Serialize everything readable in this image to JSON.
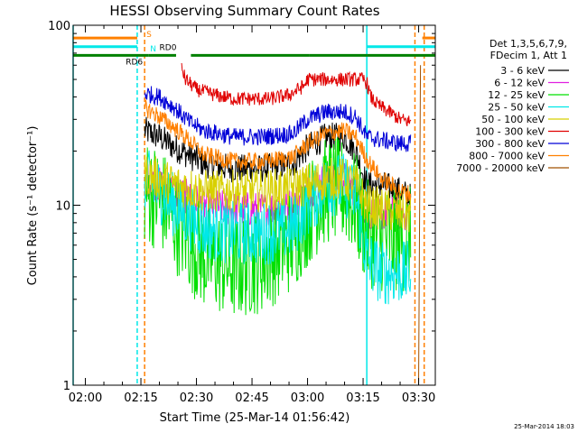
{
  "chart_data": {
    "type": "line",
    "title": "HESSI Observing Summary Count Rates",
    "xlabel": "Start Time (25-Mar-14 01:56:42)",
    "ylabel": "Count Rate (s⁻¹ detector⁻¹)",
    "footer_date": "25-Mar-2014 18:03",
    "y_scale": "log",
    "ylim": [
      1,
      100
    ],
    "xlim": [
      "01:56:42",
      "03:34:30"
    ],
    "x_ticks": [
      "02:00",
      "02:15",
      "02:30",
      "02:45",
      "03:00",
      "03:15",
      "03:30"
    ],
    "y_ticks": [
      "1",
      "10",
      "100"
    ],
    "legend": {
      "position": "right",
      "header": [
        "Det 1,3,5,6,7,9,",
        "FDecim 1, Att 1"
      ],
      "entries": [
        {
          "label": "3 - 6 keV",
          "color": "#000000"
        },
        {
          "label": "6 - 12 keV",
          "color": "#e020e0"
        },
        {
          "label": "12 - 25 keV",
          "color": "#00e000"
        },
        {
          "label": "25 - 50 keV",
          "color": "#00e8e8"
        },
        {
          "label": "50 - 100 keV",
          "color": "#d8d000"
        },
        {
          "label": "100 - 300 keV",
          "color": "#e00000"
        },
        {
          "label": "300 - 800 keV",
          "color": "#0000d8"
        },
        {
          "label": "800 - 7000 keV",
          "color": "#ff8000"
        },
        {
          "label": "7000 - 20000 keV",
          "color": "#a05000"
        }
      ]
    },
    "flags": [
      {
        "label": "S",
        "color": "#ff8000",
        "segments": [
          [
            "01:56:42",
            "02:14:00"
          ],
          [
            "03:31:00",
            "03:34:30"
          ]
        ],
        "y": 85
      },
      {
        "label": "N",
        "color": "#00e8e8",
        "segments": [
          [
            "01:56:42",
            "02:14:00"
          ],
          [
            "03:16:00",
            "03:34:30"
          ]
        ],
        "y": 76
      },
      {
        "label": "RD0",
        "color": "#008000",
        "segments": [
          [
            "02:17:00",
            "02:24:30"
          ],
          [
            "02:28:30",
            "03:00:30"
          ],
          [
            "03:16:00",
            "03:34:30"
          ]
        ],
        "y": 68
      },
      {
        "label": "RD6",
        "color": "#008000",
        "segments": [
          [
            "01:56:42",
            "02:17:00"
          ],
          [
            "03:00:30",
            "03:16:00"
          ]
        ],
        "y": 68
      }
    ],
    "vertical_markers": [
      {
        "time": "01:56:42",
        "color": "#00e8e8",
        "style": "solid"
      },
      {
        "time": "02:14:00",
        "color": "#00e8e8",
        "style": "dashed"
      },
      {
        "time": "02:16:00",
        "color": "#ff8000",
        "style": "dashed"
      },
      {
        "time": "03:16:00",
        "color": "#00e8e8",
        "style": "solid"
      },
      {
        "time": "03:29:00",
        "color": "#ff8000",
        "style": "dashed"
      },
      {
        "time": "03:31:30",
        "color": "#ff8000",
        "style": "dashed"
      }
    ],
    "series": [
      {
        "name": "3 - 6 keV",
        "color": "#000000",
        "noise": 0.08,
        "x": [
          "02:16:00",
          "02:20:00",
          "02:24:00",
          "02:28:00",
          "02:32:00",
          "02:40:00",
          "02:48:00",
          "02:56:00",
          "03:00:00",
          "03:05:00",
          "03:10:00",
          "03:13:00",
          "03:16:00",
          "03:20:00",
          "03:25:00",
          "03:28:00"
        ],
        "y": [
          26,
          24,
          21,
          19,
          17,
          16,
          16,
          17,
          21,
          24,
          24,
          20,
          13,
          13,
          12,
          11
        ]
      },
      {
        "name": "6 - 12 keV",
        "color": "#e020e0",
        "noise": 0.1,
        "x": [
          "02:16:00",
          "02:20:00",
          "02:24:00",
          "02:28:00",
          "02:32:00",
          "02:40:00",
          "02:48:00",
          "02:56:00",
          "03:00:00",
          "03:05:00",
          "03:10:00",
          "03:13:00",
          "03:16:00",
          "03:20:00",
          "03:25:00",
          "03:28:00"
        ],
        "y": [
          14,
          13,
          12,
          11,
          10,
          9.5,
          9.5,
          10,
          12,
          14,
          14,
          12,
          9,
          9,
          9,
          9
        ]
      },
      {
        "name": "12 - 25 keV",
        "color": "#00e000",
        "noise": 0.3,
        "x": [
          "02:16:00",
          "02:20:00",
          "02:24:00",
          "02:28:00",
          "02:32:00",
          "02:40:00",
          "02:48:00",
          "02:56:00",
          "03:00:00",
          "03:05:00",
          "03:10:00",
          "03:13:00",
          "03:16:00",
          "03:20:00",
          "03:25:00",
          "03:28:00"
        ],
        "y": [
          12,
          11,
          8.5,
          6.5,
          5.2,
          4.5,
          5,
          6.5,
          9,
          12,
          12,
          10,
          7,
          6.5,
          6.5,
          6.5
        ]
      },
      {
        "name": "25 - 50 keV",
        "color": "#00e8e8",
        "noise": 0.18,
        "x": [
          "02:16:00",
          "02:20:00",
          "02:24:00",
          "02:28:00",
          "02:32:00",
          "02:40:00",
          "02:48:00",
          "02:56:00",
          "03:00:00",
          "03:05:00",
          "03:10:00",
          "03:13:00",
          "03:16:00",
          "03:20:00",
          "03:25:00",
          "03:28:00"
        ],
        "y": [
          14,
          12,
          10,
          8.5,
          7.5,
          7,
          7,
          7.5,
          10,
          13,
          13,
          11,
          5,
          4.2,
          4.2,
          4.2
        ]
      },
      {
        "name": "50 - 100 keV",
        "color": "#d8d000",
        "noise": 0.12,
        "x": [
          "02:16:00",
          "02:20:00",
          "02:24:00",
          "02:28:00",
          "02:32:00",
          "02:40:00",
          "02:48:00",
          "02:56:00",
          "03:00:00",
          "03:05:00",
          "03:10:00",
          "03:13:00",
          "03:16:00",
          "03:20:00",
          "03:25:00",
          "03:28:00"
        ],
        "y": [
          15,
          14,
          13,
          12.5,
          12,
          12,
          12,
          12.5,
          13,
          14,
          14,
          13,
          10,
          9.5,
          9,
          9
        ]
      },
      {
        "name": "100 - 300 keV",
        "color": "#e00000",
        "noise": 0.04,
        "x": [
          "02:26:00",
          "02:27:00",
          "02:30:00",
          "02:35:00",
          "02:40:00",
          "02:45:00",
          "02:50:00",
          "02:55:00",
          "02:59:00",
          "03:00:00",
          "03:15:00",
          "03:16:00",
          "03:17:00",
          "03:19:00",
          "03:22:00",
          "03:25:00",
          "03:28:00"
        ],
        "y": [
          58,
          50,
          44,
          41,
          39,
          39,
          39,
          41,
          46,
          50,
          50,
          48,
          40,
          36,
          33,
          30,
          29
        ]
      },
      {
        "name": "300 - 800 keV",
        "color": "#0000d8",
        "noise": 0.05,
        "x": [
          "02:16:00",
          "02:20:00",
          "02:24:00",
          "02:28:00",
          "02:32:00",
          "02:40:00",
          "02:48:00",
          "02:56:00",
          "03:00:00",
          "03:05:00",
          "03:10:00",
          "03:13:00",
          "03:16:00",
          "03:20:00",
          "03:25:00",
          "03:28:00"
        ],
        "y": [
          42,
          40,
          35,
          29,
          26,
          24,
          24,
          25,
          30,
          33,
          33,
          31,
          24,
          23,
          22,
          22
        ]
      },
      {
        "name": "800 - 7000 keV",
        "color": "#ff8000",
        "noise": 0.05,
        "x": [
          "02:16:00",
          "02:20:00",
          "02:24:00",
          "02:28:00",
          "02:32:00",
          "02:40:00",
          "02:48:00",
          "02:56:00",
          "03:00:00",
          "03:05:00",
          "03:10:00",
          "03:13:00",
          "03:16:00",
          "03:20:00",
          "03:25:00",
          "03:28:00"
        ],
        "y": [
          35,
          31,
          27,
          23,
          19,
          17.5,
          17.5,
          18.5,
          22,
          25,
          26,
          24,
          18,
          14,
          12,
          11.5
        ]
      },
      {
        "name": "7000 - 20000 keV",
        "color": "#a05000",
        "noise": 0.05,
        "x": [
          "03:28:30",
          "03:29:30",
          "03:30:00",
          "03:30:30"
        ],
        "y": [
          1.0,
          1.0,
          1.0,
          60
        ]
      }
    ]
  }
}
